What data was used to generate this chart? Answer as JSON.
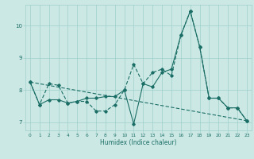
{
  "xlabel": "Humidex (Indice chaleur)",
  "xlim": [
    -0.5,
    23.5
  ],
  "ylim": [
    6.75,
    10.65
  ],
  "yticks": [
    7,
    8,
    9,
    10
  ],
  "xticks": [
    0,
    1,
    2,
    3,
    4,
    5,
    6,
    7,
    8,
    9,
    10,
    11,
    12,
    13,
    14,
    15,
    16,
    17,
    18,
    19,
    20,
    21,
    22,
    23
  ],
  "bg_color": "#cce8e5",
  "grid_color": "#9ecfca",
  "line_color": "#1a6e65",
  "line1_x": [
    0,
    1,
    2,
    3,
    4,
    5,
    6,
    7,
    8,
    9,
    10,
    11,
    12,
    13,
    14,
    15,
    16,
    17,
    18,
    19,
    20,
    21,
    22,
    23
  ],
  "line1_y": [
    8.25,
    7.55,
    8.2,
    8.15,
    7.6,
    7.65,
    7.65,
    7.35,
    7.35,
    7.55,
    8.0,
    8.8,
    8.2,
    8.55,
    8.65,
    8.45,
    9.7,
    10.45,
    9.35,
    7.75,
    7.75,
    7.45,
    7.45,
    7.05
  ],
  "line2_x": [
    0,
    1,
    2,
    3,
    4,
    5,
    6,
    7,
    8,
    9,
    10,
    11,
    12,
    13,
    14,
    15,
    16,
    17,
    18,
    19,
    20,
    21,
    22,
    23
  ],
  "line2_y": [
    8.25,
    7.55,
    7.7,
    7.7,
    7.6,
    7.65,
    7.75,
    7.75,
    7.8,
    7.8,
    8.0,
    6.95,
    8.2,
    8.1,
    8.55,
    8.65,
    9.7,
    10.45,
    9.35,
    7.75,
    7.75,
    7.45,
    7.45,
    7.05
  ],
  "line3_x": [
    0,
    23
  ],
  "line3_y": [
    8.25,
    7.05
  ]
}
